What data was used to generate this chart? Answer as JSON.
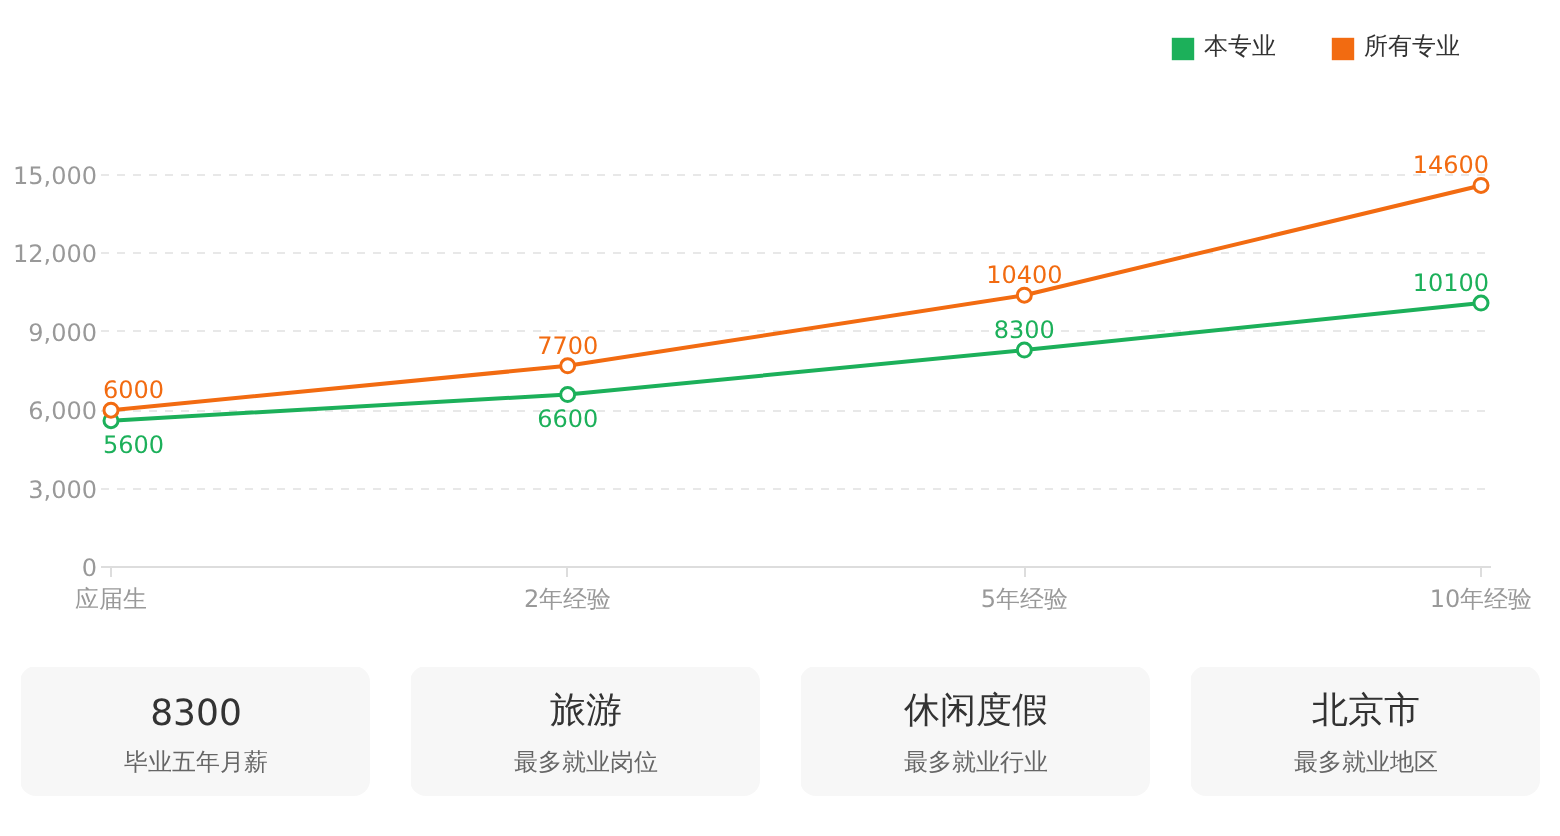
{
  "chart_data": [
    {
      "type": "line",
      "categories": [
        "应届生",
        "2年经验",
        "5年经验",
        "10年经验"
      ],
      "series": [
        {
          "name": "本专业",
          "color": "#1cb05a",
          "values": [
            5600,
            6600,
            8300,
            10100
          ]
        },
        {
          "name": "所有专业",
          "color": "#f26b11",
          "values": [
            6000,
            7700,
            10400,
            14600
          ]
        }
      ],
      "ylim": [
        0,
        15000
      ],
      "yticks": [
        0,
        {
          "value": 3000,
          "label": "3,000"
        },
        {
          "value": 6000,
          "label": "6,000"
        },
        {
          "value": 9000,
          "label": "9,000"
        },
        {
          "value": 12000,
          "label": "12,000"
        },
        {
          "value": 15000,
          "label": "15,000"
        }
      ],
      "grid": "y",
      "legend": "top right",
      "marker": "circle",
      "line_style": "solid",
      "data_labels": true
    },
    {
      "type": "other",
      "title": "8300",
      "subtitle": "毕业五年月薪"
    },
    {
      "type": "other",
      "title": "旅游",
      "subtitle": "最多就业岗位"
    },
    {
      "type": "other",
      "title": "休闲度假",
      "subtitle": "最多就业行业"
    },
    {
      "type": "other",
      "title": "北京市",
      "subtitle": "最多就业地区"
    }
  ]
}
